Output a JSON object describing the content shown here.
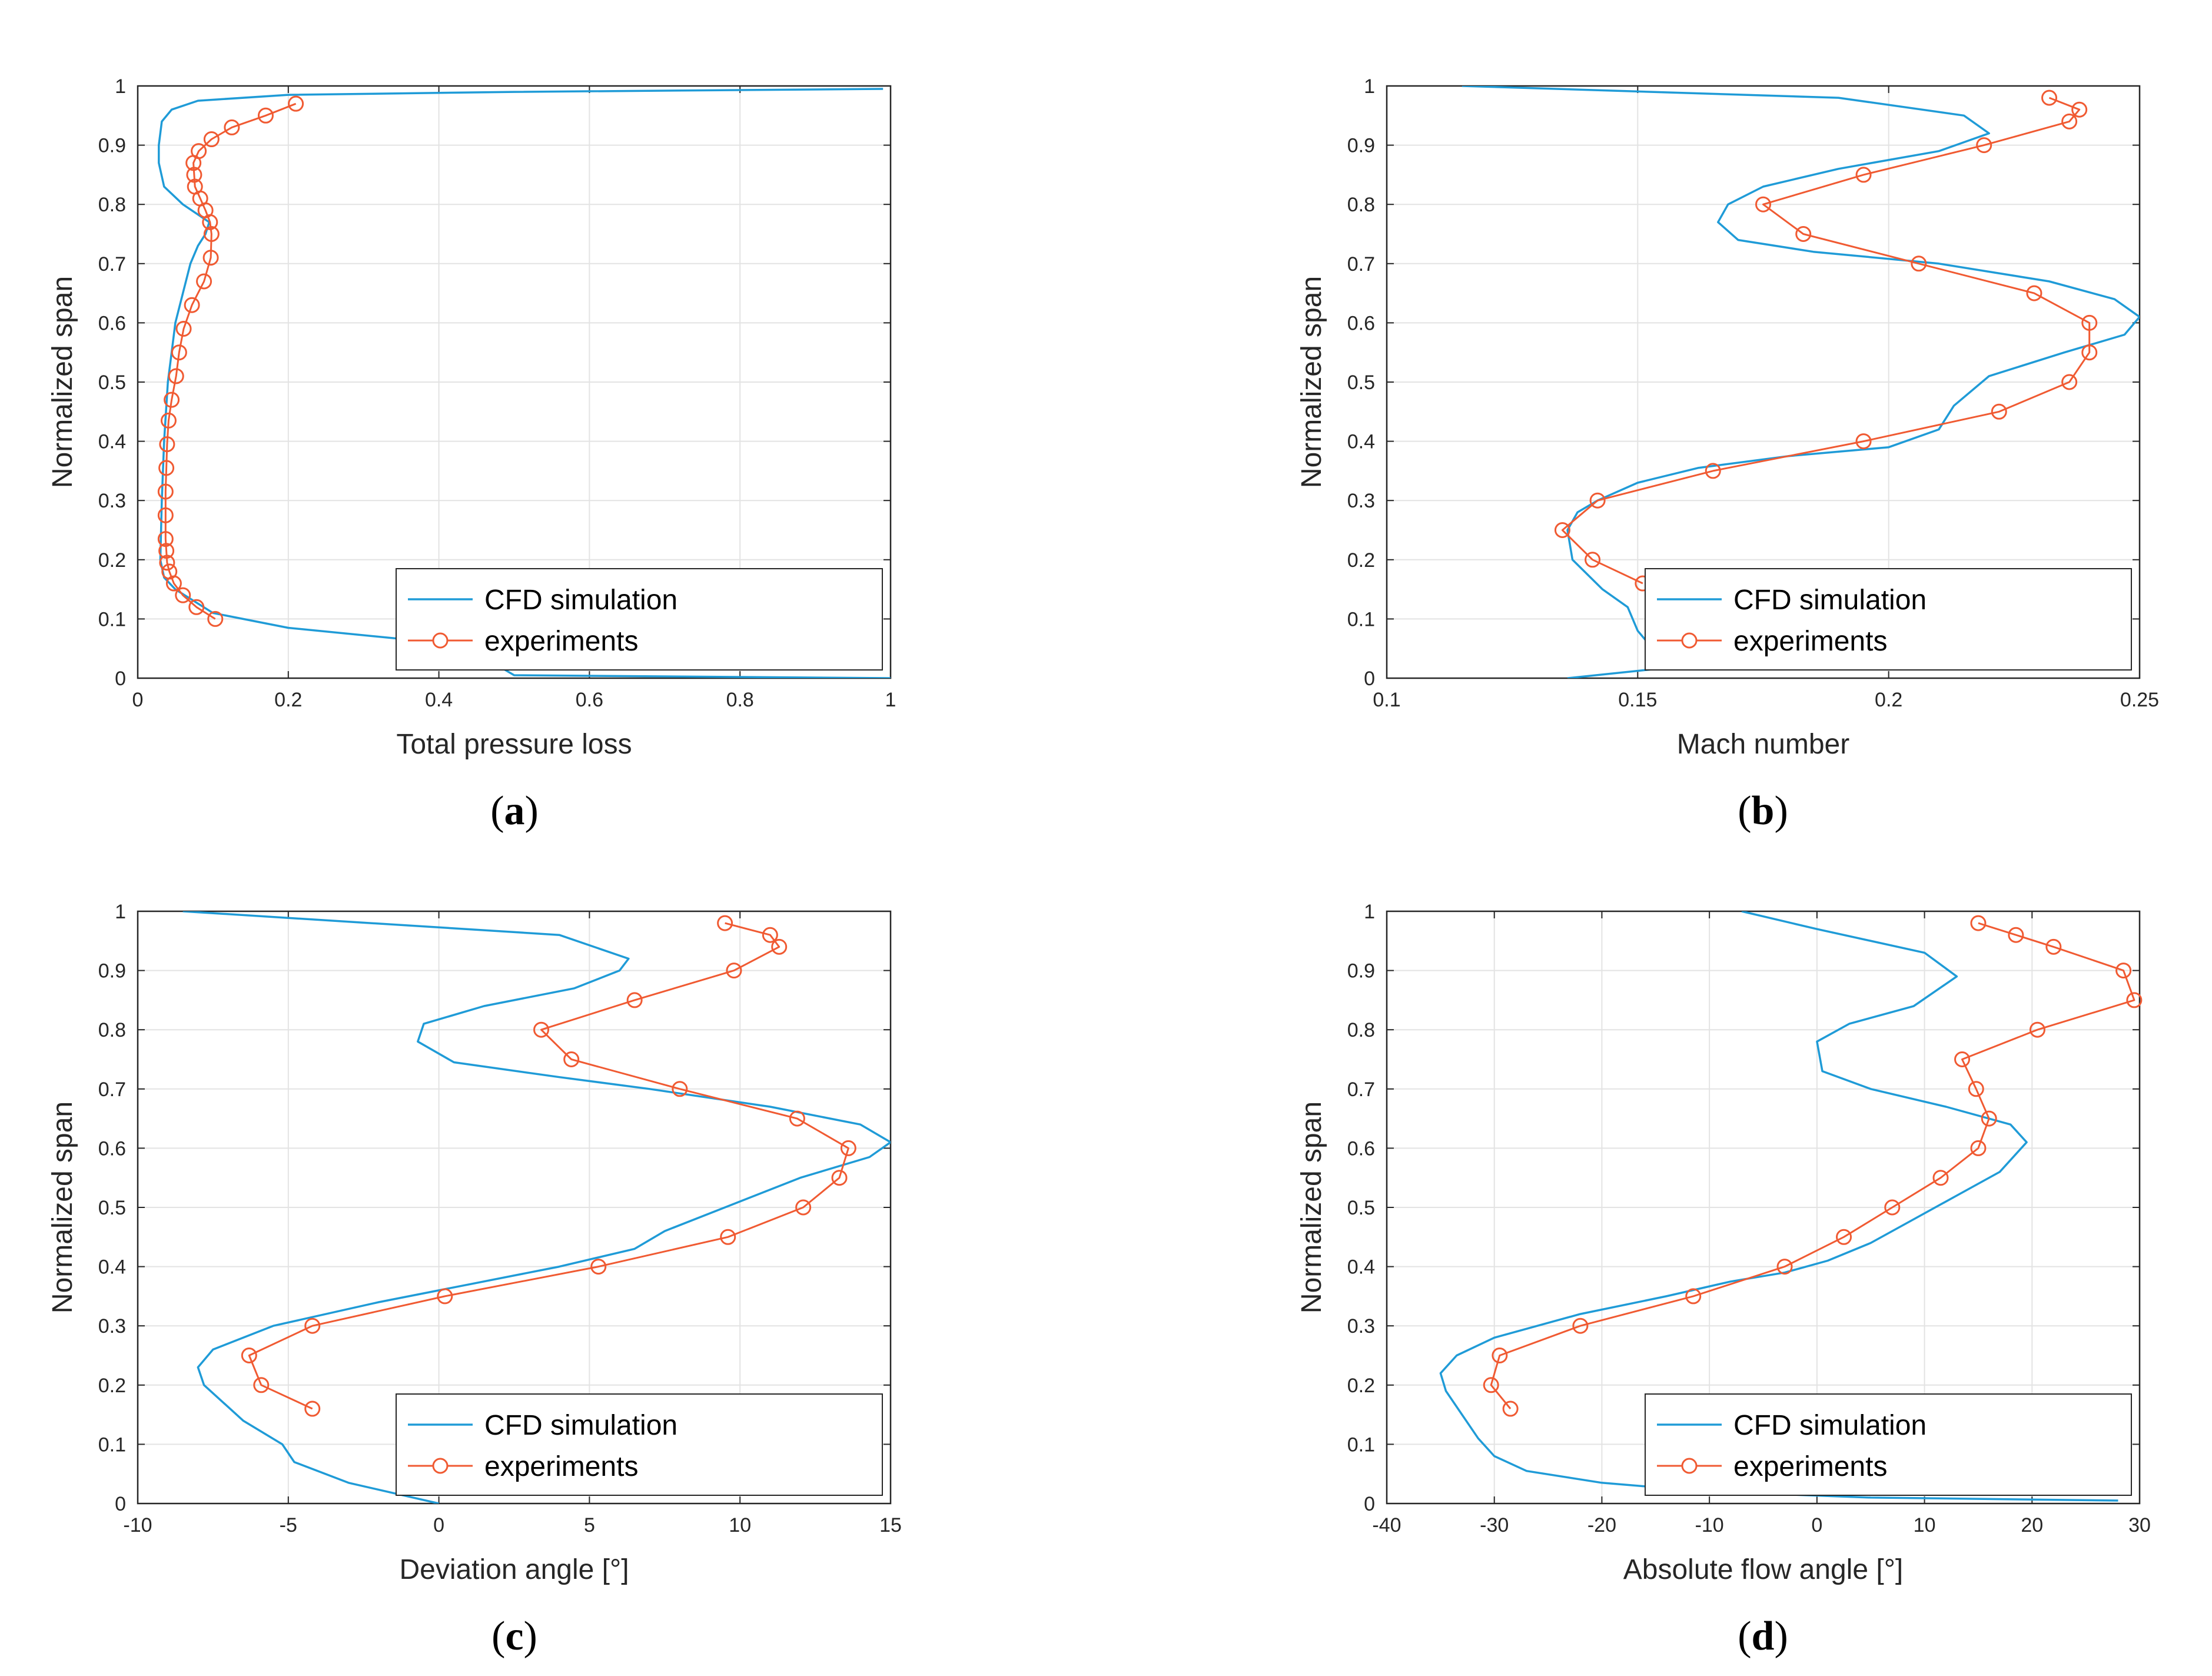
{
  "colors": {
    "cfd": "#1f9bd7",
    "exp": "#f05a32",
    "grid": "#e3e3e3",
    "axis": "#262626"
  },
  "legend": {
    "cfd_label": "CFD simulation",
    "exp_label": "experiments",
    "position": "bottom-right"
  },
  "chart_data": [
    {
      "type": "line",
      "panel": "a",
      "caption": {
        "open": "(",
        "letter": "a",
        "close": ")"
      },
      "xlabel": "Total pressure loss",
      "ylabel": "Normalized span",
      "xlim": [
        0,
        1
      ],
      "ylim": [
        0,
        1
      ],
      "xticks": [
        0,
        0.2,
        0.4,
        0.6,
        0.8,
        1
      ],
      "xtick_labels": [
        "0",
        "0.2",
        "0.4",
        "0.6",
        "0.8",
        "1"
      ],
      "yticks": [
        0,
        0.1,
        0.2,
        0.3,
        0.4,
        0.5,
        0.6,
        0.7,
        0.8,
        0.9,
        1
      ],
      "ytick_labels": [
        "0",
        "0.1",
        "0.2",
        "0.3",
        "0.4",
        "0.5",
        "0.6",
        "0.7",
        "0.8",
        "0.9",
        "1"
      ],
      "grid": true,
      "series": [
        {
          "name": "CFD simulation",
          "x": [
            1.0,
            0.5,
            0.48,
            0.47,
            0.48,
            0.4,
            0.2,
            0.1,
            0.05,
            0.035,
            0.03,
            0.032,
            0.035,
            0.04,
            0.045,
            0.05,
            0.06,
            0.07,
            0.08,
            0.09,
            0.095,
            0.06,
            0.035,
            0.028,
            0.028,
            0.032,
            0.045,
            0.08,
            0.2,
            0.5,
            0.99
          ],
          "y": [
            0.0,
            0.005,
            0.02,
            0.035,
            0.05,
            0.06,
            0.085,
            0.11,
            0.15,
            0.17,
            0.2,
            0.3,
            0.4,
            0.5,
            0.55,
            0.6,
            0.65,
            0.7,
            0.73,
            0.75,
            0.77,
            0.8,
            0.83,
            0.87,
            0.9,
            0.94,
            0.96,
            0.975,
            0.985,
            0.99,
            0.995
          ]
        },
        {
          "name": "experiments",
          "x": [
            0.103,
            0.078,
            0.06,
            0.048,
            0.042,
            0.039,
            0.038,
            0.037,
            0.037,
            0.037,
            0.038,
            0.039,
            0.041,
            0.045,
            0.051,
            0.055,
            0.061,
            0.072,
            0.088,
            0.097,
            0.098,
            0.096,
            0.09,
            0.083,
            0.076,
            0.075,
            0.074,
            0.081,
            0.098,
            0.125,
            0.17,
            0.21
          ],
          "y": [
            0.1,
            0.12,
            0.14,
            0.16,
            0.18,
            0.195,
            0.215,
            0.235,
            0.275,
            0.315,
            0.355,
            0.395,
            0.435,
            0.47,
            0.51,
            0.55,
            0.59,
            0.63,
            0.67,
            0.71,
            0.75,
            0.77,
            0.79,
            0.81,
            0.83,
            0.85,
            0.87,
            0.89,
            0.91,
            0.93,
            0.95,
            0.97
          ]
        }
      ]
    },
    {
      "type": "line",
      "panel": "b",
      "caption": {
        "open": "(",
        "letter": "b",
        "close": ")"
      },
      "xlabel": "Mach number",
      "ylabel": "Normalized span",
      "xlim": [
        0.1,
        0.25
      ],
      "ylim": [
        0,
        1
      ],
      "xticks": [
        0.1,
        0.15,
        0.2,
        0.25
      ],
      "xtick_labels": [
        "0.1",
        "0.15",
        "0.2",
        "0.25"
      ],
      "yticks": [
        0,
        0.1,
        0.2,
        0.3,
        0.4,
        0.5,
        0.6,
        0.7,
        0.8,
        0.9,
        1
      ],
      "ytick_labels": [
        "0",
        "0.1",
        "0.2",
        "0.3",
        "0.4",
        "0.5",
        "0.6",
        "0.7",
        "0.8",
        "0.9",
        "1"
      ],
      "grid": true,
      "series": [
        {
          "name": "CFD simulation",
          "x": [
            0.136,
            0.153,
            0.155,
            0.153,
            0.15,
            0.148,
            0.143,
            0.137,
            0.136,
            0.138,
            0.142,
            0.15,
            0.162,
            0.18,
            0.2,
            0.21,
            0.213,
            0.22,
            0.235,
            0.247,
            0.25,
            0.245,
            0.232,
            0.21,
            0.185,
            0.17,
            0.166,
            0.168,
            0.175,
            0.19,
            0.21,
            0.22,
            0.215,
            0.19,
            0.115
          ],
          "y": [
            0.0,
            0.015,
            0.025,
            0.05,
            0.08,
            0.12,
            0.15,
            0.2,
            0.25,
            0.28,
            0.3,
            0.33,
            0.355,
            0.375,
            0.39,
            0.42,
            0.46,
            0.51,
            0.55,
            0.58,
            0.61,
            0.64,
            0.67,
            0.7,
            0.72,
            0.74,
            0.77,
            0.8,
            0.83,
            0.86,
            0.89,
            0.92,
            0.95,
            0.98,
            1.0
          ]
        },
        {
          "name": "experiments",
          "x": [
            0.151,
            0.141,
            0.135,
            0.142,
            0.165,
            0.195,
            0.222,
            0.236,
            0.24,
            0.24,
            0.229,
            0.206,
            0.183,
            0.175,
            0.195,
            0.219,
            0.236,
            0.238,
            0.232
          ],
          "y": [
            0.16,
            0.2,
            0.25,
            0.3,
            0.35,
            0.4,
            0.45,
            0.5,
            0.55,
            0.6,
            0.65,
            0.7,
            0.75,
            0.8,
            0.85,
            0.9,
            0.94,
            0.96,
            0.98
          ]
        }
      ]
    },
    {
      "type": "line",
      "panel": "c",
      "caption": {
        "open": "(",
        "letter": "c",
        "close": ")"
      },
      "xlabel": "Deviation angle [°]",
      "ylabel": "Normalized span",
      "xlim": [
        -10,
        15
      ],
      "ylim": [
        0,
        1
      ],
      "xticks": [
        -10,
        -5,
        0,
        5,
        10,
        15
      ],
      "xtick_labels": [
        "-10",
        "-5",
        "0",
        "5",
        "10",
        "15"
      ],
      "yticks": [
        0,
        0.1,
        0.2,
        0.3,
        0.4,
        0.5,
        0.6,
        0.7,
        0.8,
        0.9,
        1
      ],
      "ytick_labels": [
        "0",
        "0.1",
        "0.2",
        "0.3",
        "0.4",
        "0.5",
        "0.6",
        "0.7",
        "0.8",
        "0.9",
        "1"
      ],
      "grid": true,
      "series": [
        {
          "name": "CFD simulation",
          "x": [
            0.0,
            -3.0,
            -4.8,
            -5.2,
            -6.5,
            -7.8,
            -8.0,
            -7.5,
            -5.5,
            -2.0,
            1.0,
            4.0,
            6.5,
            7.5,
            9.5,
            12.0,
            14.3,
            15.0,
            14.0,
            11.0,
            7.0,
            4.0,
            0.5,
            -0.7,
            -0.5,
            1.5,
            4.5,
            6.0,
            6.3,
            4.0,
            -8.5
          ],
          "y": [
            0.0,
            0.035,
            0.07,
            0.1,
            0.14,
            0.2,
            0.23,
            0.26,
            0.3,
            0.34,
            0.37,
            0.4,
            0.43,
            0.46,
            0.5,
            0.55,
            0.585,
            0.61,
            0.64,
            0.67,
            0.7,
            0.72,
            0.745,
            0.78,
            0.81,
            0.84,
            0.87,
            0.9,
            0.92,
            0.96,
            1.0
          ]
        },
        {
          "name": "experiments",
          "x": [
            -4.2,
            -5.9,
            -6.3,
            -4.2,
            0.2,
            5.3,
            9.6,
            12.1,
            13.3,
            13.6,
            11.9,
            8.0,
            4.4,
            3.4,
            6.5,
            9.8,
            11.3,
            11.0,
            9.5
          ],
          "y": [
            0.16,
            0.2,
            0.25,
            0.3,
            0.35,
            0.4,
            0.45,
            0.5,
            0.55,
            0.6,
            0.65,
            0.7,
            0.75,
            0.8,
            0.85,
            0.9,
            0.94,
            0.96,
            0.98
          ]
        }
      ]
    },
    {
      "type": "line",
      "panel": "d",
      "caption": {
        "open": "(",
        "letter": "d",
        "close": ")"
      },
      "xlabel": "Absolute flow angle [°]",
      "ylabel": "Normalized span",
      "xlim": [
        -40,
        30
      ],
      "ylim": [
        0,
        1
      ],
      "xticks": [
        -40,
        -30,
        -20,
        -10,
        0,
        10,
        20,
        30
      ],
      "xtick_labels": [
        "-40",
        "-30",
        "-20",
        "-10",
        "0",
        "10",
        "20",
        "30"
      ],
      "yticks": [
        0,
        0.1,
        0.2,
        0.3,
        0.4,
        0.5,
        0.6,
        0.7,
        0.8,
        0.9,
        1
      ],
      "ytick_labels": [
        "0",
        "0.1",
        "0.2",
        "0.3",
        "0.4",
        "0.5",
        "0.6",
        "0.7",
        "0.8",
        "0.9",
        "1"
      ],
      "grid": true,
      "series": [
        {
          "name": "CFD simulation",
          "x": [
            28.0,
            5.0,
            -10.0,
            -20.0,
            -27.0,
            -30.0,
            -31.5,
            -33.0,
            -34.5,
            -35.0,
            -33.5,
            -30.0,
            -22.0,
            -14.0,
            -8.0,
            -3.0,
            1.0,
            5.0,
            9.0,
            13.0,
            17.0,
            19.5,
            18.0,
            12.0,
            5.0,
            0.5,
            0.0,
            3.0,
            9.0,
            13.0,
            10.0,
            0.0,
            -7.0
          ],
          "y": [
            0.005,
            0.01,
            0.02,
            0.035,
            0.055,
            0.08,
            0.11,
            0.15,
            0.19,
            0.22,
            0.25,
            0.28,
            0.32,
            0.35,
            0.375,
            0.39,
            0.41,
            0.44,
            0.48,
            0.52,
            0.56,
            0.61,
            0.64,
            0.67,
            0.7,
            0.73,
            0.78,
            0.81,
            0.84,
            0.89,
            0.93,
            0.97,
            1.0
          ]
        },
        {
          "name": "experiments",
          "x": [
            -28.5,
            -30.3,
            -29.5,
            -22.0,
            -11.5,
            -3.0,
            2.5,
            7.0,
            11.5,
            15.0,
            16.0,
            14.8,
            13.5,
            20.5,
            29.5,
            28.5,
            22.0,
            18.5,
            15.0
          ],
          "y": [
            0.16,
            0.2,
            0.25,
            0.3,
            0.35,
            0.4,
            0.45,
            0.5,
            0.55,
            0.6,
            0.65,
            0.7,
            0.75,
            0.8,
            0.85,
            0.9,
            0.94,
            0.96,
            0.98
          ]
        }
      ]
    }
  ]
}
